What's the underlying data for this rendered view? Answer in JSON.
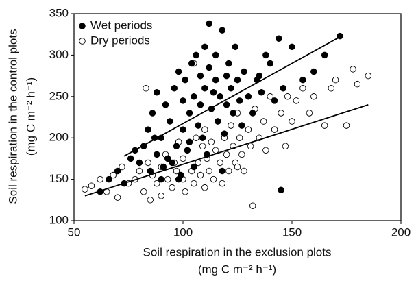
{
  "chart_data": {
    "type": "scatter",
    "xlabel": "Soil respiration in the exclusion plots",
    "xlabel_units": "(mg C m⁻² h⁻¹)",
    "ylabel": "Soil respiration in the control plots",
    "ylabel_units": "(mg C m⁻² h⁻¹)",
    "xlim": [
      50,
      200
    ],
    "xticks": [
      50,
      100,
      150,
      200
    ],
    "ylim": [
      100,
      350
    ],
    "yticks": [
      100,
      150,
      200,
      250,
      300,
      350
    ],
    "legend": "upper left",
    "series": [
      {
        "name": "Wet periods",
        "color": "#000000",
        "filled": true,
        "x": [
          62,
          66,
          70,
          73,
          76,
          78,
          80,
          82,
          84,
          85,
          86,
          88,
          88,
          90,
          90,
          92,
          93,
          94,
          95,
          96,
          97,
          98,
          99,
          100,
          100,
          101,
          102,
          103,
          104,
          105,
          105,
          106,
          107,
          108,
          108,
          109,
          110,
          110,
          111,
          112,
          113,
          114,
          115,
          115,
          116,
          117,
          118,
          119,
          120,
          120,
          121,
          122,
          123,
          124,
          125,
          126,
          128,
          130,
          132,
          134,
          136,
          138,
          140,
          142,
          144,
          146,
          150,
          155,
          160,
          165,
          172,
          145,
          135,
          118,
          98,
          112,
          87,
          91,
          103,
          127
        ],
        "values": [
          135,
          150,
          160,
          145,
          175,
          185,
          170,
          190,
          210,
          160,
          230,
          180,
          255,
          200,
          150,
          240,
          175,
          220,
          170,
          260,
          190,
          280,
          155,
          210,
          245,
          270,
          185,
          230,
          290,
          165,
          250,
          300,
          215,
          240,
          275,
          200,
          260,
          310,
          180,
          285,
          235,
          255,
          270,
          300,
          220,
          250,
          330,
          205,
          275,
          240,
          290,
          260,
          230,
          310,
          270,
          245,
          280,
          250,
          230,
          270,
          255,
          300,
          290,
          245,
          320,
          260,
          310,
          270,
          280,
          300,
          323,
          137,
          275,
          160,
          150,
          338,
          200,
          165,
          195,
          215
        ],
        "trend": {
          "x": [
            73,
            172
          ],
          "y": [
            178,
            322
          ]
        }
      },
      {
        "name": "Dry periods",
        "color": "#000000",
        "filled": false,
        "x": [
          55,
          58,
          62,
          65,
          68,
          70,
          72,
          75,
          78,
          80,
          82,
          84,
          85,
          86,
          88,
          90,
          90,
          92,
          93,
          95,
          96,
          97,
          98,
          100,
          100,
          101,
          102,
          104,
          105,
          106,
          107,
          108,
          109,
          110,
          110,
          111,
          112,
          113,
          114,
          115,
          116,
          117,
          118,
          119,
          120,
          121,
          122,
          123,
          124,
          125,
          126,
          127,
          128,
          130,
          131,
          132,
          133,
          135,
          137,
          140,
          142,
          145,
          148,
          150,
          152,
          155,
          158,
          160,
          165,
          168,
          170,
          175,
          178,
          180,
          185,
          83,
          105,
          125,
          138,
          147
        ],
        "values": [
          138,
          142,
          150,
          135,
          155,
          128,
          165,
          145,
          150,
          160,
          135,
          170,
          125,
          155,
          145,
          165,
          130,
          180,
          150,
          140,
          170,
          160,
          195,
          150,
          175,
          135,
          185,
          160,
          145,
          200,
          170,
          155,
          190,
          140,
          210,
          175,
          160,
          195,
          150,
          185,
          220,
          170,
          145,
          200,
          180,
          160,
          215,
          190,
          170,
          230,
          200,
          180,
          160,
          210,
          190,
          118,
          235,
          200,
          220,
          250,
          210,
          230,
          250,
          220,
          245,
          260,
          230,
          250,
          215,
          260,
          270,
          215,
          283,
          265,
          275,
          260,
          290,
          165,
          185,
          190
        ],
        "trend": {
          "x": [
            55,
            185
          ],
          "y": [
            130,
            240
          ]
        }
      }
    ]
  }
}
